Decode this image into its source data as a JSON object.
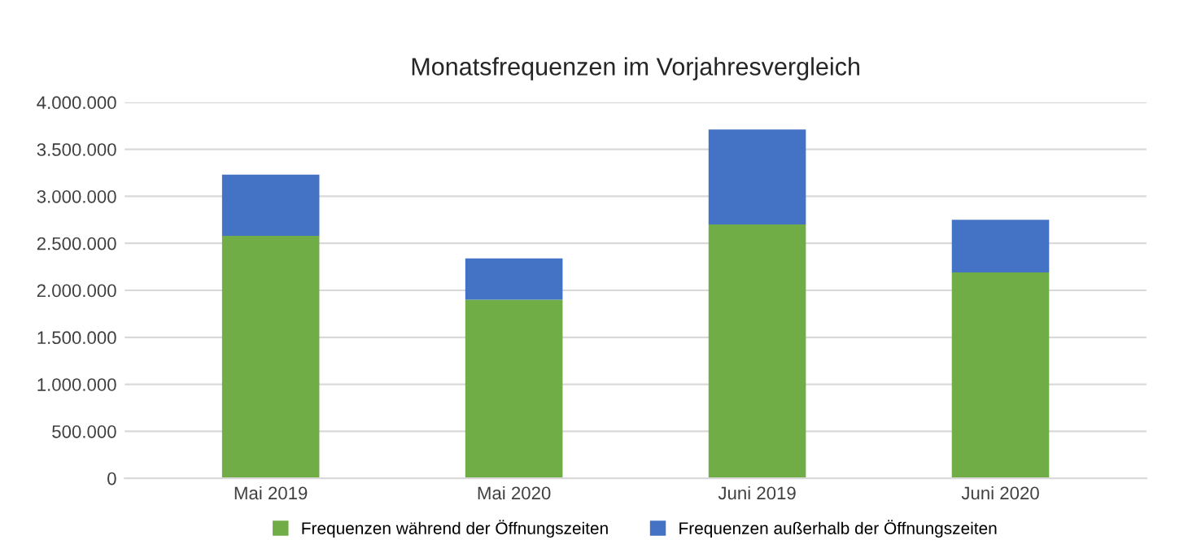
{
  "chart_data": {
    "type": "bar",
    "title": "Monatsfrequenzen im Vorjahresvergleich",
    "categories": [
      "Mai 2019",
      "Mai 2020",
      "Juni 2019",
      "Juni 2020"
    ],
    "stacked": true,
    "series": [
      {
        "name": "Frequenzen während der Öffnungszeiten",
        "color": "#70ad47",
        "values": [
          2580000,
          1900000,
          2700000,
          2190000
        ]
      },
      {
        "name": "Frequenzen außerhalb der Öffnungszeiten",
        "color": "#4472c4",
        "values": [
          650000,
          440000,
          1010000,
          560000
        ]
      }
    ],
    "ylim": [
      0,
      4000000
    ],
    "yticks": [
      {
        "value": 0,
        "label": "0"
      },
      {
        "value": 500000,
        "label": "500.000"
      },
      {
        "value": 1000000,
        "label": "1.000.000"
      },
      {
        "value": 1500000,
        "label": "1.500.000"
      },
      {
        "value": 2000000,
        "label": "2.000.000"
      },
      {
        "value": 2500000,
        "label": "2.500.000"
      },
      {
        "value": 3000000,
        "label": "3.000.000"
      },
      {
        "value": 3500000,
        "label": "3.500.000"
      },
      {
        "value": 4000000,
        "label": "4.000.000"
      }
    ],
    "grid": "y",
    "legend": "bottom"
  }
}
